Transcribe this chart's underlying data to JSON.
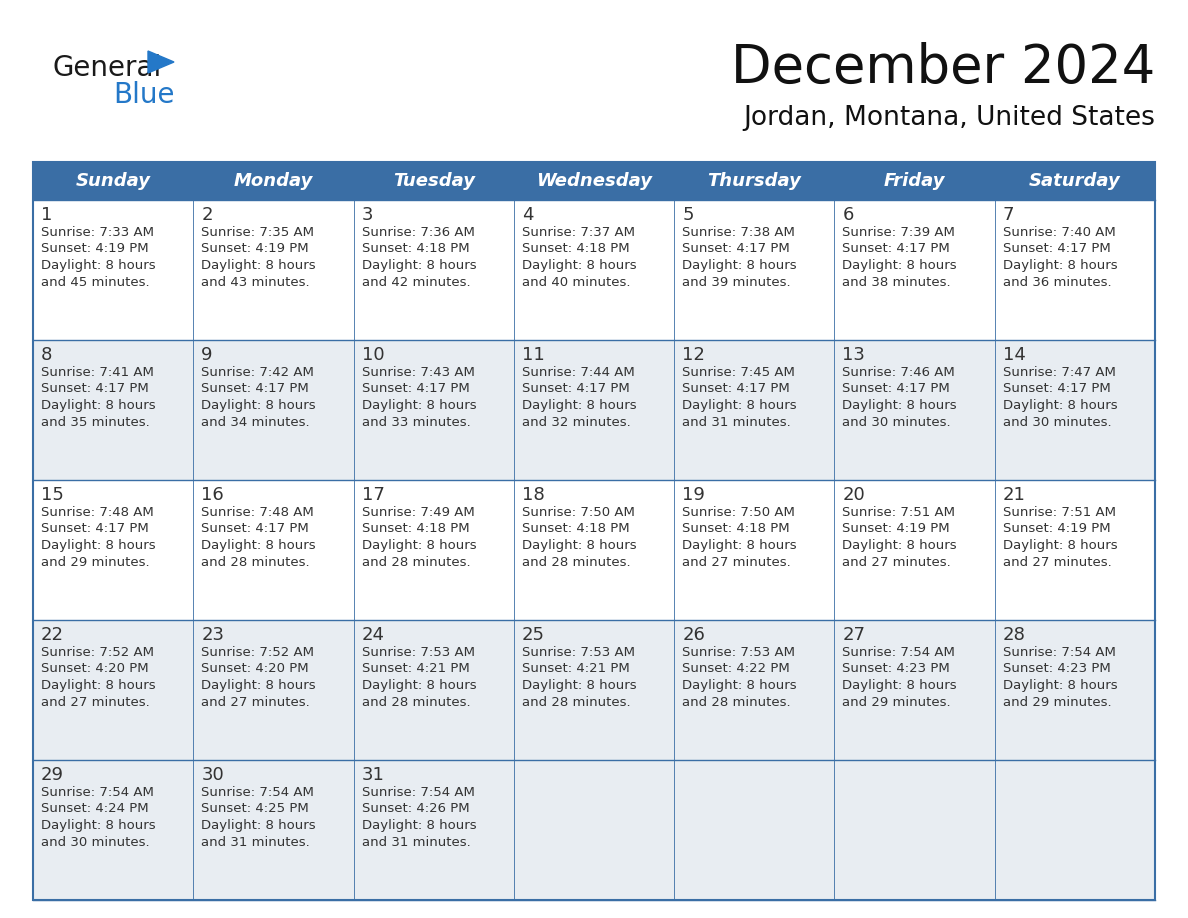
{
  "title": "December 2024",
  "subtitle": "Jordan, Montana, United States",
  "header_color": "#3a6ea5",
  "header_text_color": "#ffffff",
  "day_names": [
    "Sunday",
    "Monday",
    "Tuesday",
    "Wednesday",
    "Thursday",
    "Friday",
    "Saturday"
  ],
  "days": [
    {
      "day": 1,
      "col": 0,
      "row": 0,
      "sunrise": "7:33 AM",
      "sunset": "4:19 PM",
      "daylight_hrs": "8 hours",
      "daylight_min": "and 45 minutes."
    },
    {
      "day": 2,
      "col": 1,
      "row": 0,
      "sunrise": "7:35 AM",
      "sunset": "4:19 PM",
      "daylight_hrs": "8 hours",
      "daylight_min": "and 43 minutes."
    },
    {
      "day": 3,
      "col": 2,
      "row": 0,
      "sunrise": "7:36 AM",
      "sunset": "4:18 PM",
      "daylight_hrs": "8 hours",
      "daylight_min": "and 42 minutes."
    },
    {
      "day": 4,
      "col": 3,
      "row": 0,
      "sunrise": "7:37 AM",
      "sunset": "4:18 PM",
      "daylight_hrs": "8 hours",
      "daylight_min": "and 40 minutes."
    },
    {
      "day": 5,
      "col": 4,
      "row": 0,
      "sunrise": "7:38 AM",
      "sunset": "4:17 PM",
      "daylight_hrs": "8 hours",
      "daylight_min": "and 39 minutes."
    },
    {
      "day": 6,
      "col": 5,
      "row": 0,
      "sunrise": "7:39 AM",
      "sunset": "4:17 PM",
      "daylight_hrs": "8 hours",
      "daylight_min": "and 38 minutes."
    },
    {
      "day": 7,
      "col": 6,
      "row": 0,
      "sunrise": "7:40 AM",
      "sunset": "4:17 PM",
      "daylight_hrs": "8 hours",
      "daylight_min": "and 36 minutes."
    },
    {
      "day": 8,
      "col": 0,
      "row": 1,
      "sunrise": "7:41 AM",
      "sunset": "4:17 PM",
      "daylight_hrs": "8 hours",
      "daylight_min": "and 35 minutes."
    },
    {
      "day": 9,
      "col": 1,
      "row": 1,
      "sunrise": "7:42 AM",
      "sunset": "4:17 PM",
      "daylight_hrs": "8 hours",
      "daylight_min": "and 34 minutes."
    },
    {
      "day": 10,
      "col": 2,
      "row": 1,
      "sunrise": "7:43 AM",
      "sunset": "4:17 PM",
      "daylight_hrs": "8 hours",
      "daylight_min": "and 33 minutes."
    },
    {
      "day": 11,
      "col": 3,
      "row": 1,
      "sunrise": "7:44 AM",
      "sunset": "4:17 PM",
      "daylight_hrs": "8 hours",
      "daylight_min": "and 32 minutes."
    },
    {
      "day": 12,
      "col": 4,
      "row": 1,
      "sunrise": "7:45 AM",
      "sunset": "4:17 PM",
      "daylight_hrs": "8 hours",
      "daylight_min": "and 31 minutes."
    },
    {
      "day": 13,
      "col": 5,
      "row": 1,
      "sunrise": "7:46 AM",
      "sunset": "4:17 PM",
      "daylight_hrs": "8 hours",
      "daylight_min": "and 30 minutes."
    },
    {
      "day": 14,
      "col": 6,
      "row": 1,
      "sunrise": "7:47 AM",
      "sunset": "4:17 PM",
      "daylight_hrs": "8 hours",
      "daylight_min": "and 30 minutes."
    },
    {
      "day": 15,
      "col": 0,
      "row": 2,
      "sunrise": "7:48 AM",
      "sunset": "4:17 PM",
      "daylight_hrs": "8 hours",
      "daylight_min": "and 29 minutes."
    },
    {
      "day": 16,
      "col": 1,
      "row": 2,
      "sunrise": "7:48 AM",
      "sunset": "4:17 PM",
      "daylight_hrs": "8 hours",
      "daylight_min": "and 28 minutes."
    },
    {
      "day": 17,
      "col": 2,
      "row": 2,
      "sunrise": "7:49 AM",
      "sunset": "4:18 PM",
      "daylight_hrs": "8 hours",
      "daylight_min": "and 28 minutes."
    },
    {
      "day": 18,
      "col": 3,
      "row": 2,
      "sunrise": "7:50 AM",
      "sunset": "4:18 PM",
      "daylight_hrs": "8 hours",
      "daylight_min": "and 28 minutes."
    },
    {
      "day": 19,
      "col": 4,
      "row": 2,
      "sunrise": "7:50 AM",
      "sunset": "4:18 PM",
      "daylight_hrs": "8 hours",
      "daylight_min": "and 27 minutes."
    },
    {
      "day": 20,
      "col": 5,
      "row": 2,
      "sunrise": "7:51 AM",
      "sunset": "4:19 PM",
      "daylight_hrs": "8 hours",
      "daylight_min": "and 27 minutes."
    },
    {
      "day": 21,
      "col": 6,
      "row": 2,
      "sunrise": "7:51 AM",
      "sunset": "4:19 PM",
      "daylight_hrs": "8 hours",
      "daylight_min": "and 27 minutes."
    },
    {
      "day": 22,
      "col": 0,
      "row": 3,
      "sunrise": "7:52 AM",
      "sunset": "4:20 PM",
      "daylight_hrs": "8 hours",
      "daylight_min": "and 27 minutes."
    },
    {
      "day": 23,
      "col": 1,
      "row": 3,
      "sunrise": "7:52 AM",
      "sunset": "4:20 PM",
      "daylight_hrs": "8 hours",
      "daylight_min": "and 27 minutes."
    },
    {
      "day": 24,
      "col": 2,
      "row": 3,
      "sunrise": "7:53 AM",
      "sunset": "4:21 PM",
      "daylight_hrs": "8 hours",
      "daylight_min": "and 28 minutes."
    },
    {
      "day": 25,
      "col": 3,
      "row": 3,
      "sunrise": "7:53 AM",
      "sunset": "4:21 PM",
      "daylight_hrs": "8 hours",
      "daylight_min": "and 28 minutes."
    },
    {
      "day": 26,
      "col": 4,
      "row": 3,
      "sunrise": "7:53 AM",
      "sunset": "4:22 PM",
      "daylight_hrs": "8 hours",
      "daylight_min": "and 28 minutes."
    },
    {
      "day": 27,
      "col": 5,
      "row": 3,
      "sunrise": "7:54 AM",
      "sunset": "4:23 PM",
      "daylight_hrs": "8 hours",
      "daylight_min": "and 29 minutes."
    },
    {
      "day": 28,
      "col": 6,
      "row": 3,
      "sunrise": "7:54 AM",
      "sunset": "4:23 PM",
      "daylight_hrs": "8 hours",
      "daylight_min": "and 29 minutes."
    },
    {
      "day": 29,
      "col": 0,
      "row": 4,
      "sunrise": "7:54 AM",
      "sunset": "4:24 PM",
      "daylight_hrs": "8 hours",
      "daylight_min": "and 30 minutes."
    },
    {
      "day": 30,
      "col": 1,
      "row": 4,
      "sunrise": "7:54 AM",
      "sunset": "4:25 PM",
      "daylight_hrs": "8 hours",
      "daylight_min": "and 31 minutes."
    },
    {
      "day": 31,
      "col": 2,
      "row": 4,
      "sunrise": "7:54 AM",
      "sunset": "4:26 PM",
      "daylight_hrs": "8 hours",
      "daylight_min": "and 31 minutes."
    }
  ],
  "num_rows": 5,
  "row_bg_colors": [
    "#ffffff",
    "#e8edf2",
    "#ffffff",
    "#e8edf2",
    "#e8edf2"
  ],
  "border_color": "#3a6ea5",
  "separator_color": "#3a6ea5",
  "text_color": "#333333",
  "logo_general_color": "#1a1a1a",
  "logo_blue_color": "#2478c8",
  "logo_triangle_color": "#2478c8",
  "title_fontsize": 38,
  "subtitle_fontsize": 19,
  "header_fontsize": 13,
  "day_num_fontsize": 13,
  "content_fontsize": 9.5
}
